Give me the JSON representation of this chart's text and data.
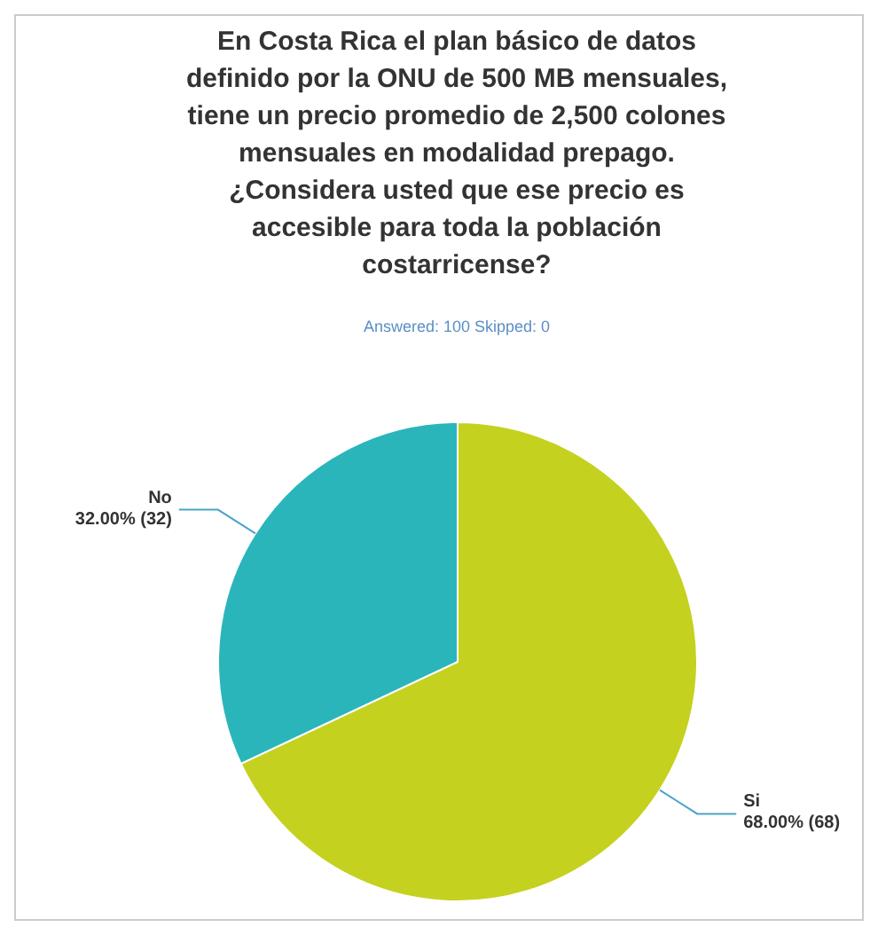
{
  "chart_data": {
    "type": "pie",
    "title": "En Costa Rica el plan básico de datos definido por la ONU de 500 MB mensuales, tiene un precio promedio de 2,500 colones mensuales en modalidad prepago. ¿Considera usted que ese precio es accesible para toda la población costarricense?",
    "subtitle": "Answered: 100    Skipped: 0",
    "categories": [
      "Si",
      "No"
    ],
    "values": [
      68,
      32
    ],
    "colors": [
      "#c5d11f",
      "#2ab5bb"
    ],
    "value_labels": [
      "68.00% (68)",
      "32.00% (32)"
    ]
  }
}
